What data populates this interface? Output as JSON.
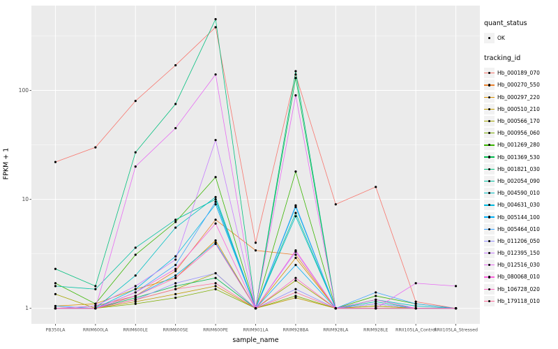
{
  "figure": {
    "x_axis_title": "sample_name",
    "y_axis_title": "FPKM + 1"
  },
  "legend": {
    "quant_status_title": "quant_status",
    "quant_status_items": [
      {
        "label": "OK"
      }
    ],
    "tracking_id_title": "tracking_id",
    "key_bg": "#F2F2F2"
  },
  "chart_data": {
    "type": "line",
    "title": "",
    "xlabel": "sample_name",
    "ylabel": "FPKM + 1",
    "y_scale": "log10",
    "y_ticks": [
      1,
      10,
      100
    ],
    "y_domain": [
      0.72,
      600
    ],
    "grid": true,
    "legend_position": "right",
    "panel_bg": "#EBEBEB",
    "grid_color": "#FFFFFF",
    "point_color": "#000000",
    "categories": [
      "PB350LA",
      "RRIM600LA",
      "RRIM600LE",
      "RRIM600SE",
      "RRIM600PE",
      "RRIM901LA",
      "RRIM928BA",
      "RRIM928LA",
      "RRIM928LE",
      "RRII105LA_Control",
      "RRII105LA_Stressed"
    ],
    "series": [
      {
        "name": "Hb_000189_070",
        "color": "#F8766D",
        "values": [
          22,
          30,
          80,
          170,
          380,
          4.0,
          140,
          9,
          13,
          1.15,
          1
        ]
      },
      {
        "name": "Hb_000270_550",
        "color": "#EA8331",
        "values": [
          1,
          1.05,
          1.3,
          2.2,
          6.5,
          3.4,
          3.1,
          1,
          1.05,
          1,
          1
        ]
      },
      {
        "name": "Hb_000297_220",
        "color": "#D89000",
        "values": [
          1.05,
          1.1,
          1.5,
          1.9,
          4.2,
          1,
          2.9,
          1,
          1,
          1,
          1
        ]
      },
      {
        "name": "Hb_000510_210",
        "color": "#C09B00",
        "values": [
          1,
          1,
          1.15,
          1.35,
          1.6,
          1,
          1.25,
          1,
          1,
          1,
          1
        ]
      },
      {
        "name": "Hb_000566_170",
        "color": "#A3A500",
        "values": [
          1.35,
          1,
          1.2,
          1.5,
          2.1,
          1,
          1.8,
          1,
          1.05,
          1,
          1
        ]
      },
      {
        "name": "Hb_000956_060",
        "color": "#7CAE00",
        "values": [
          1,
          1,
          1.1,
          1.25,
          1.5,
          1,
          1.3,
          1,
          1,
          1,
          1
        ]
      },
      {
        "name": "Hb_001269_280",
        "color": "#39B600",
        "values": [
          1.7,
          1.1,
          3.1,
          6.2,
          16,
          1,
          18,
          1,
          1.3,
          1.1,
          1
        ]
      },
      {
        "name": "Hb_001369_530",
        "color": "#00BB4E",
        "values": [
          1,
          1,
          1.25,
          1.6,
          1.9,
          1,
          130,
          1,
          1.1,
          1,
          1
        ]
      },
      {
        "name": "Hb_001821_030",
        "color": "#00BF7D",
        "values": [
          2.3,
          1.6,
          27,
          75,
          450,
          1,
          150,
          1,
          1.2,
          1,
          1
        ]
      },
      {
        "name": "Hb_002054_090",
        "color": "#00C1A3",
        "values": [
          1.6,
          1.5,
          3.6,
          6.5,
          10,
          1,
          7.5,
          1,
          1.15,
          1,
          1
        ]
      },
      {
        "name": "Hb_004590_010",
        "color": "#00BFC4",
        "values": [
          1,
          1,
          2,
          5.5,
          10.5,
          1,
          7,
          1,
          1.2,
          1.05,
          1
        ]
      },
      {
        "name": "Hb_004631_030",
        "color": "#00BAE0",
        "values": [
          1,
          1,
          1.5,
          3,
          9,
          1,
          8.5,
          1,
          1,
          1,
          1
        ]
      },
      {
        "name": "Hb_005144_100",
        "color": "#00B0F6",
        "values": [
          1,
          1,
          1.3,
          2,
          4,
          1,
          2.5,
          1,
          1.1,
          1,
          1
        ]
      },
      {
        "name": "Hb_005464_010",
        "color": "#35A2FF",
        "values": [
          1.05,
          1,
          1.4,
          2.5,
          9.5,
          1,
          8.8,
          1,
          1.4,
          1.1,
          1
        ]
      },
      {
        "name": "Hb_011206_050",
        "color": "#9590FF",
        "values": [
          1,
          1,
          1.2,
          1.7,
          2.1,
          1,
          1.5,
          1,
          1,
          1,
          1
        ]
      },
      {
        "name": "Hb_012395_150",
        "color": "#C77CFF",
        "values": [
          1,
          1.05,
          1.6,
          2.8,
          35,
          1,
          3.3,
          1,
          1.1,
          1,
          1
        ]
      },
      {
        "name": "Hb_012516_030",
        "color": "#E76BF3",
        "values": [
          1,
          1,
          20,
          45,
          140,
          1,
          90,
          1,
          1,
          1.7,
          1.6
        ]
      },
      {
        "name": "Hb_080068_010",
        "color": "#FA62DB",
        "values": [
          1,
          1,
          1.4,
          2.3,
          6,
          1,
          3.4,
          1,
          1.2,
          1,
          1
        ]
      },
      {
        "name": "Hb_106728_020",
        "color": "#FF62BC",
        "values": [
          1,
          1,
          1.3,
          1.9,
          3.9,
          1,
          1.9,
          1,
          1,
          1,
          1
        ]
      },
      {
        "name": "Hb_179118_010",
        "color": "#FF6A98",
        "values": [
          1,
          1,
          1.2,
          1.5,
          1.7,
          1,
          1.4,
          1,
          1,
          1,
          1
        ]
      }
    ]
  }
}
